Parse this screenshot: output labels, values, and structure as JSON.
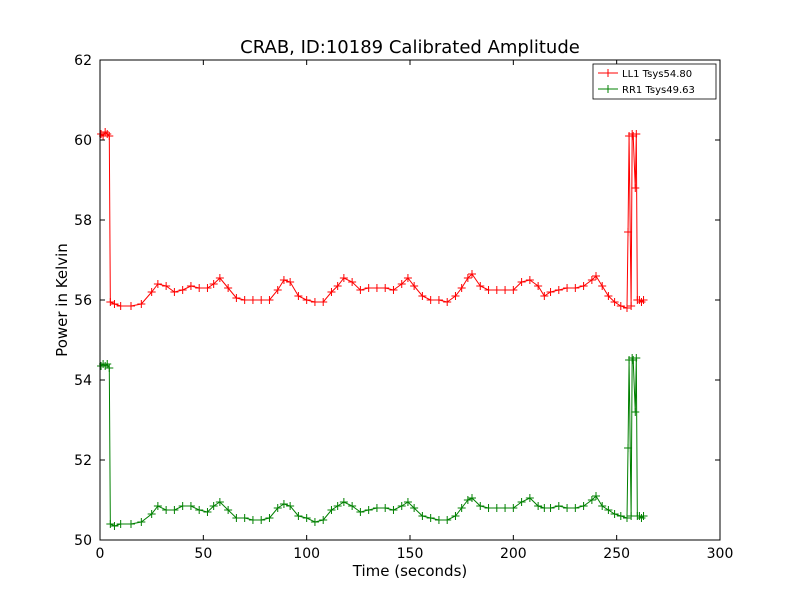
{
  "chart_data": {
    "type": "line",
    "title": "CRAB, ID:10189 Calibrated Amplitude",
    "xlabel": "Time (seconds)",
    "ylabel": "Power in Kelvin",
    "xlim": [
      0,
      300
    ],
    "ylim": [
      50,
      62
    ],
    "xticks": [
      0,
      50,
      100,
      150,
      200,
      250,
      300
    ],
    "yticks": [
      50,
      52,
      54,
      56,
      58,
      60,
      62
    ],
    "grid": false,
    "legend_position": "top-right",
    "marker": "plus",
    "series": [
      {
        "name": "LL1 Tsys54.80",
        "color": "#ff0000",
        "points": [
          [
            0.5,
            60.15
          ],
          [
            1.5,
            60.1
          ],
          [
            2.5,
            60.2
          ],
          [
            3.5,
            60.15
          ],
          [
            4.5,
            60.1
          ],
          [
            5,
            55.95
          ],
          [
            7,
            55.9
          ],
          [
            10,
            55.85
          ],
          [
            15,
            55.85
          ],
          [
            20,
            55.9
          ],
          [
            25,
            56.2
          ],
          [
            28,
            56.4
          ],
          [
            32,
            56.35
          ],
          [
            36,
            56.2
          ],
          [
            40,
            56.25
          ],
          [
            44,
            56.35
          ],
          [
            48,
            56.3
          ],
          [
            52,
            56.3
          ],
          [
            55,
            56.4
          ],
          [
            58,
            56.55
          ],
          [
            62,
            56.3
          ],
          [
            66,
            56.05
          ],
          [
            70,
            56.0
          ],
          [
            74,
            56.0
          ],
          [
            78,
            56.0
          ],
          [
            82,
            56.0
          ],
          [
            86,
            56.25
          ],
          [
            89,
            56.5
          ],
          [
            92,
            56.45
          ],
          [
            96,
            56.1
          ],
          [
            100,
            56.0
          ],
          [
            104,
            55.95
          ],
          [
            108,
            55.95
          ],
          [
            112,
            56.2
          ],
          [
            115,
            56.35
          ],
          [
            118,
            56.55
          ],
          [
            122,
            56.45
          ],
          [
            126,
            56.25
          ],
          [
            130,
            56.3
          ],
          [
            134,
            56.3
          ],
          [
            138,
            56.3
          ],
          [
            142,
            56.25
          ],
          [
            146,
            56.4
          ],
          [
            149,
            56.55
          ],
          [
            152,
            56.35
          ],
          [
            156,
            56.1
          ],
          [
            160,
            56.0
          ],
          [
            164,
            56.0
          ],
          [
            168,
            55.95
          ],
          [
            172,
            56.1
          ],
          [
            175,
            56.3
          ],
          [
            178,
            56.55
          ],
          [
            180,
            56.65
          ],
          [
            184,
            56.35
          ],
          [
            188,
            56.25
          ],
          [
            192,
            56.25
          ],
          [
            196,
            56.25
          ],
          [
            200,
            56.25
          ],
          [
            204,
            56.45
          ],
          [
            208,
            56.5
          ],
          [
            212,
            56.35
          ],
          [
            215,
            56.1
          ],
          [
            218,
            56.2
          ],
          [
            222,
            56.25
          ],
          [
            226,
            56.3
          ],
          [
            230,
            56.3
          ],
          [
            234,
            56.35
          ],
          [
            238,
            56.5
          ],
          [
            240,
            56.6
          ],
          [
            243,
            56.35
          ],
          [
            246,
            56.1
          ],
          [
            249,
            55.95
          ],
          [
            252,
            55.85
          ],
          [
            255,
            55.8
          ],
          [
            255.5,
            57.7
          ],
          [
            256,
            60.1
          ],
          [
            257,
            55.85
          ],
          [
            257.5,
            60.15
          ],
          [
            258,
            60.1
          ],
          [
            259,
            58.8
          ],
          [
            259.5,
            60.15
          ],
          [
            260,
            56.0
          ],
          [
            261,
            56.0
          ],
          [
            262,
            55.95
          ],
          [
            263,
            56.0
          ]
        ]
      },
      {
        "name": "RR1 Tsys49.63",
        "color": "#008000",
        "points": [
          [
            0.5,
            54.35
          ],
          [
            1.5,
            54.4
          ],
          [
            2.5,
            54.35
          ],
          [
            3.5,
            54.4
          ],
          [
            4.5,
            54.3
          ],
          [
            5,
            50.4
          ],
          [
            7,
            50.35
          ],
          [
            10,
            50.4
          ],
          [
            15,
            50.4
          ],
          [
            20,
            50.45
          ],
          [
            25,
            50.65
          ],
          [
            28,
            50.85
          ],
          [
            32,
            50.75
          ],
          [
            36,
            50.75
          ],
          [
            40,
            50.85
          ],
          [
            44,
            50.85
          ],
          [
            48,
            50.75
          ],
          [
            52,
            50.7
          ],
          [
            55,
            50.85
          ],
          [
            58,
            50.95
          ],
          [
            62,
            50.75
          ],
          [
            66,
            50.55
          ],
          [
            70,
            50.55
          ],
          [
            74,
            50.5
          ],
          [
            78,
            50.5
          ],
          [
            82,
            50.55
          ],
          [
            86,
            50.8
          ],
          [
            89,
            50.9
          ],
          [
            92,
            50.85
          ],
          [
            96,
            50.6
          ],
          [
            100,
            50.55
          ],
          [
            104,
            50.45
          ],
          [
            108,
            50.5
          ],
          [
            112,
            50.75
          ],
          [
            115,
            50.85
          ],
          [
            118,
            50.95
          ],
          [
            122,
            50.85
          ],
          [
            126,
            50.7
          ],
          [
            130,
            50.75
          ],
          [
            134,
            50.8
          ],
          [
            138,
            50.8
          ],
          [
            142,
            50.75
          ],
          [
            146,
            50.85
          ],
          [
            149,
            50.95
          ],
          [
            152,
            50.8
          ],
          [
            156,
            50.6
          ],
          [
            160,
            50.55
          ],
          [
            164,
            50.5
          ],
          [
            168,
            50.5
          ],
          [
            172,
            50.6
          ],
          [
            175,
            50.8
          ],
          [
            178,
            51.0
          ],
          [
            180,
            51.05
          ],
          [
            184,
            50.85
          ],
          [
            188,
            50.8
          ],
          [
            192,
            50.8
          ],
          [
            196,
            50.8
          ],
          [
            200,
            50.8
          ],
          [
            204,
            50.95
          ],
          [
            208,
            51.05
          ],
          [
            212,
            50.85
          ],
          [
            215,
            50.8
          ],
          [
            218,
            50.8
          ],
          [
            222,
            50.85
          ],
          [
            226,
            50.8
          ],
          [
            230,
            50.8
          ],
          [
            234,
            50.85
          ],
          [
            238,
            51.0
          ],
          [
            240,
            51.1
          ],
          [
            243,
            50.85
          ],
          [
            246,
            50.75
          ],
          [
            249,
            50.65
          ],
          [
            252,
            50.6
          ],
          [
            255,
            50.55
          ],
          [
            255.5,
            52.3
          ],
          [
            256,
            54.5
          ],
          [
            257,
            50.6
          ],
          [
            257.5,
            54.55
          ],
          [
            258,
            54.5
          ],
          [
            259,
            53.2
          ],
          [
            259.5,
            54.55
          ],
          [
            260,
            50.6
          ],
          [
            261,
            50.6
          ],
          [
            262,
            50.55
          ],
          [
            263,
            50.6
          ]
        ]
      }
    ]
  }
}
